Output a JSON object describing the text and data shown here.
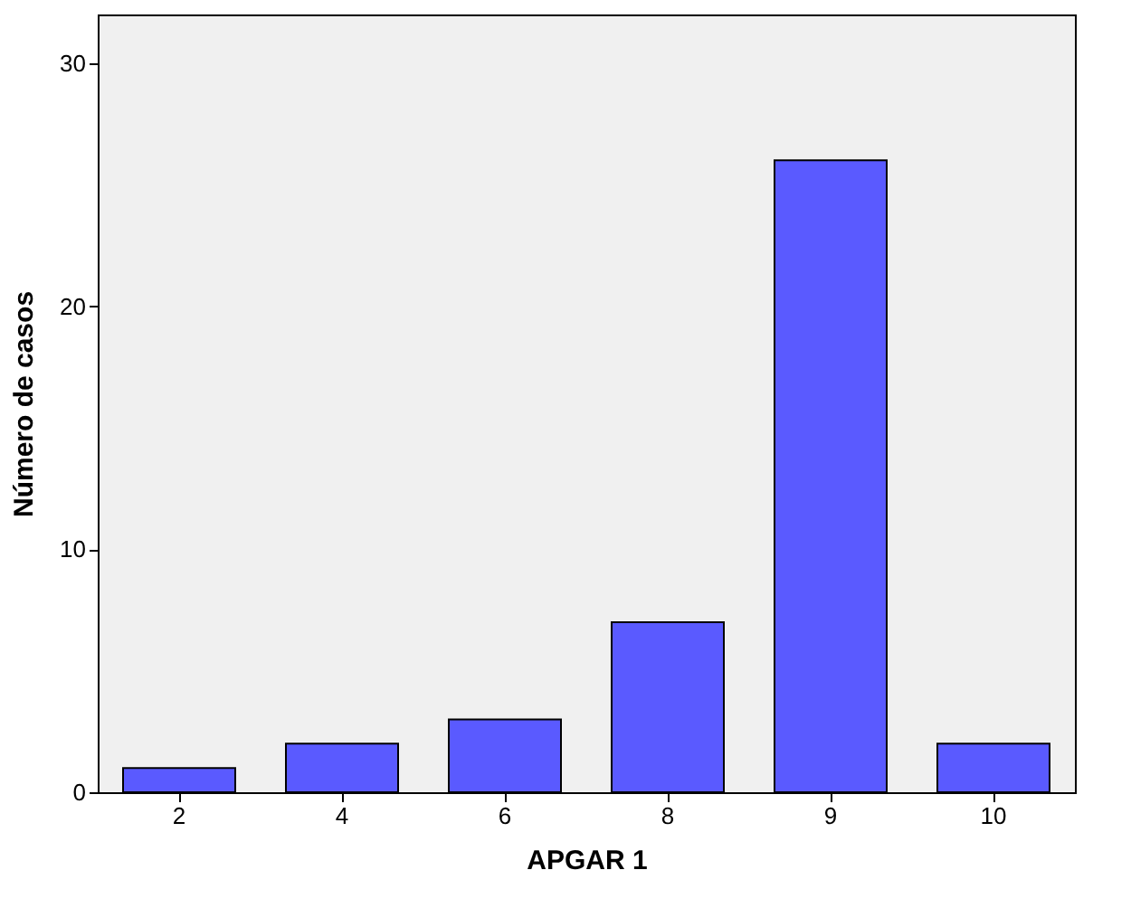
{
  "chart_data": {
    "type": "bar",
    "xlabel": "APGAR 1",
    "ylabel": "Número de casos",
    "categories": [
      "2",
      "4",
      "6",
      "8",
      "9",
      "10"
    ],
    "values": [
      1,
      2,
      3,
      7,
      26,
      2
    ],
    "color": "#5a5aff",
    "ylim": [
      0,
      32
    ],
    "yticks": [
      0,
      10,
      20,
      30
    ],
    "grid": false
  }
}
